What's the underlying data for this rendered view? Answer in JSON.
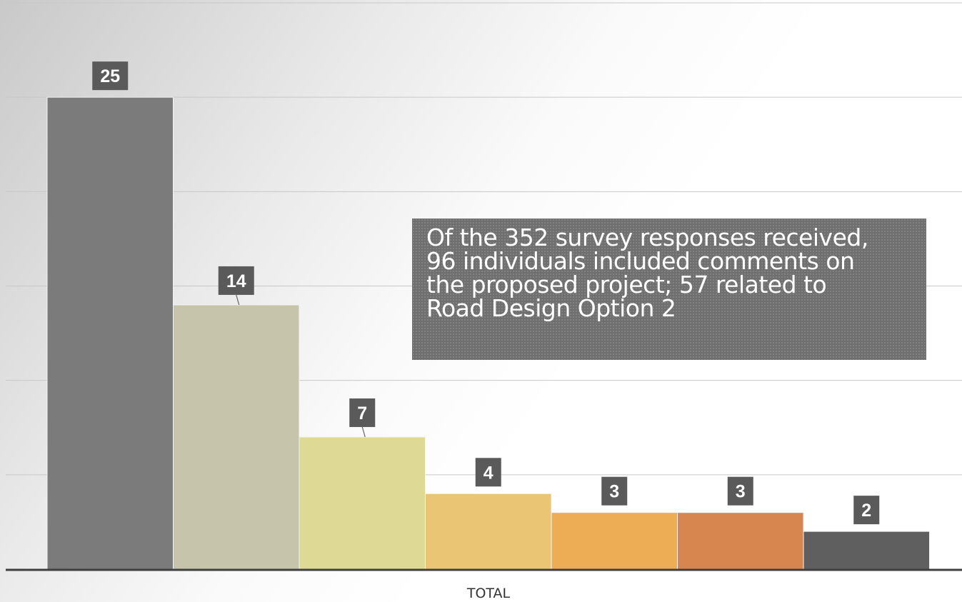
{
  "chart_data": {
    "type": "bar",
    "categories": [
      "TOTAL"
    ],
    "series": [
      {
        "values": [
          25
        ],
        "color": "#7b7b7b"
      },
      {
        "values": [
          14
        ],
        "color": "#c6c5ac"
      },
      {
        "values": [
          7
        ],
        "color": "#dfd996"
      },
      {
        "values": [
          4
        ],
        "color": "#e9c574"
      },
      {
        "values": [
          3
        ],
        "color": "#ecad55"
      },
      {
        "values": [
          3
        ],
        "color": "#d78650"
      },
      {
        "values": [
          2
        ],
        "color": "#5f5f5f"
      }
    ],
    "title": "",
    "xlabel": "",
    "ylabel": "",
    "ylim": [
      0,
      30
    ],
    "grid": true,
    "legend": "none"
  },
  "annotation": {
    "lines": [
      "Of the 352 survey responses received,",
      "96 individuals included comments on",
      "the proposed project; 57 related to",
      "Road Design Option 2"
    ]
  }
}
